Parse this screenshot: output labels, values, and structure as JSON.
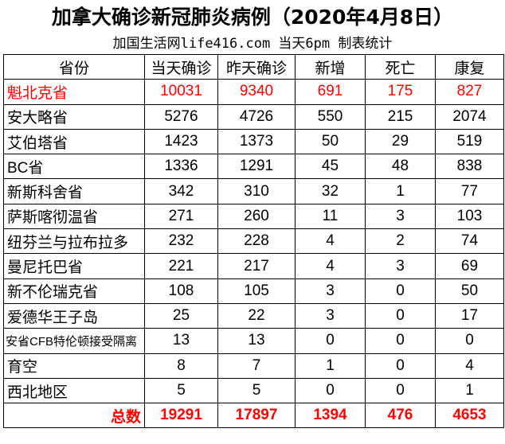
{
  "title": "加拿大确诊新冠肺炎病例（2020年4月8日）",
  "subtitle": "加国生活网life416.com 当天6pm 制表统计",
  "colors": {
    "highlight": "#ff0000",
    "text": "#000000"
  },
  "headers": [
    "省份",
    "当天确诊",
    "昨天确诊",
    "新增",
    "死亡",
    "康复"
  ],
  "rows": [
    [
      "魁北克省",
      "10031",
      "9340",
      "691",
      "175",
      "827"
    ],
    [
      "安大略省",
      "5276",
      "4726",
      "550",
      "215",
      "2074"
    ],
    [
      "艾伯塔省",
      "1423",
      "1373",
      "50",
      "29",
      "519"
    ],
    [
      "BC省",
      "1336",
      "1291",
      "45",
      "48",
      "838"
    ],
    [
      "新斯科舍省",
      "342",
      "310",
      "32",
      "1",
      "77"
    ],
    [
      "萨斯喀彻温省",
      "271",
      "260",
      "11",
      "3",
      "103"
    ],
    [
      "纽芬兰与拉布拉多",
      "232",
      "228",
      "4",
      "2",
      "74"
    ],
    [
      "曼尼托巴省",
      "221",
      "217",
      "4",
      "3",
      "69"
    ],
    [
      "新不伦瑞克省",
      "108",
      "105",
      "3",
      "0",
      "50"
    ],
    [
      "爱德华王子岛",
      "25",
      "22",
      "3",
      "0",
      "17"
    ],
    [
      "安省CFB特伦顿接受隔离",
      "13",
      "13",
      "0",
      "0",
      "0"
    ],
    [
      "育空",
      "8",
      "7",
      "1",
      "0",
      "4"
    ],
    [
      "西北地区",
      "5",
      "5",
      "0",
      "0",
      "1"
    ]
  ],
  "total": [
    "总数",
    "19291",
    "17897",
    "1394",
    "476",
    "4653"
  ]
}
